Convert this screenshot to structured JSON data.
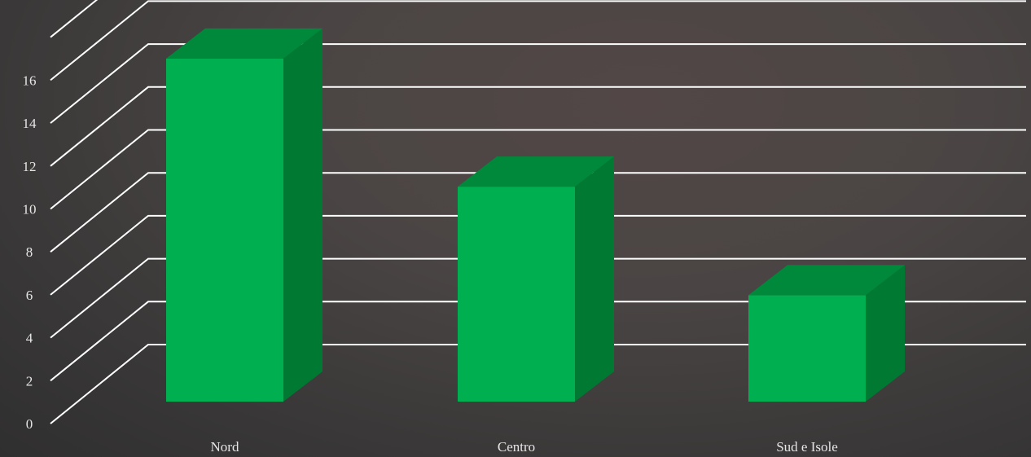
{
  "chart_data": {
    "type": "bar",
    "title": "",
    "xlabel": "",
    "ylabel": "",
    "categories": [
      "Nord",
      "Centro",
      "Sud e Isole"
    ],
    "values": [
      15.8,
      9.9,
      4.9
    ],
    "ylim": [
      0,
      18
    ],
    "yticks": [
      "0",
      "2",
      "4",
      "6",
      "8",
      "10",
      "12",
      "14",
      "16"
    ],
    "grid": true,
    "style": "3d-bar",
    "colors": {
      "front": "#00b050",
      "side": "#007a33",
      "top": "#00893a",
      "grid": "#ffffff",
      "text": "#e6e6e6"
    }
  }
}
